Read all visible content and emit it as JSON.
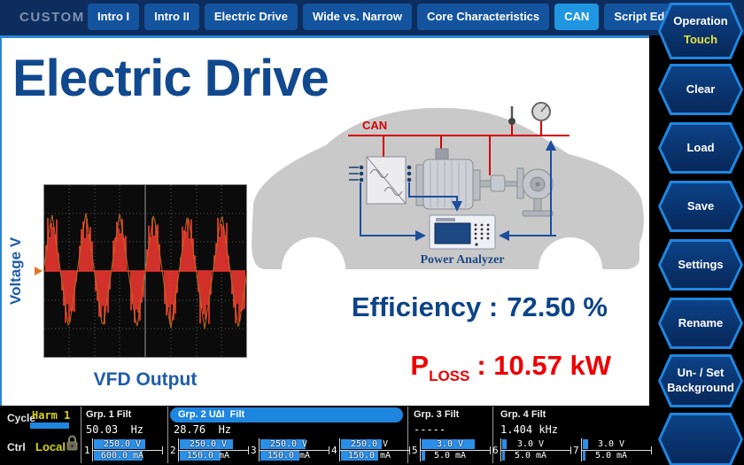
{
  "header": {
    "label": "CUSTOM",
    "tabs": [
      {
        "label": "Intro I",
        "selected": false
      },
      {
        "label": "Intro II",
        "selected": false
      },
      {
        "label": "Electric Drive",
        "selected": false
      },
      {
        "label": "Wide vs. Narrow",
        "selected": false
      },
      {
        "label": "Core Characteristics",
        "selected": false
      },
      {
        "label": "CAN",
        "selected": true
      },
      {
        "label": "Script Editor",
        "selected": false
      }
    ]
  },
  "sidebar": {
    "buttons": [
      {
        "label": "Operation",
        "sublabel": "Touch"
      },
      {
        "label": "Clear"
      },
      {
        "label": "Load"
      },
      {
        "label": "Save"
      },
      {
        "label": "Settings"
      },
      {
        "label": "Rename"
      },
      {
        "label": "Un- / Set",
        "label2": "Background"
      },
      {
        "label": ""
      }
    ]
  },
  "main": {
    "title": "Electric Drive",
    "diagram": {
      "bus_label": "CAN",
      "analyzer_label": "Power Analyzer"
    },
    "scope": {
      "ylabel": "Voltage V",
      "caption": "VFD Output"
    },
    "efficiency": {
      "label": "Efficiency :",
      "value": "72.50 %"
    },
    "ploss": {
      "base": "P",
      "sub": "LOSS",
      "value": ": 10.57 kW"
    }
  },
  "statusbar": {
    "cycle_label": "Cycle",
    "cycle_value": "Harm 1",
    "ctrl_label": "Ctrl",
    "ctrl_value": "Local",
    "groups": [
      {
        "name": "Grp. 1 Filt",
        "freq": "50.03  Hz",
        "selected": false
      },
      {
        "name": "Grp. 2 U∆I  Filt",
        "freq": "28.76  Hz",
        "selected": true
      },
      {
        "name": "Grp. 3 Filt",
        "freq": "-----",
        "selected": false
      },
      {
        "name": "Grp. 4 Filt",
        "freq": "1.404 kHz",
        "selected": false
      }
    ],
    "channels": [
      {
        "num": "1",
        "v": "250.0 V",
        "a": "600.0 mA",
        "vfill": 0.9,
        "afill": 0.86
      },
      {
        "num": "2",
        "v": "250.0 V",
        "a": "150.0 mA",
        "vfill": 0.94,
        "afill": 0.72
      },
      {
        "num": "3",
        "v": "250.0 V",
        "a": "150.0 mA",
        "vfill": 0.8,
        "afill": 0.68
      },
      {
        "num": "4",
        "v": "250.0 V",
        "a": "150.0 mA",
        "vfill": 0.72,
        "afill": 0.66
      },
      {
        "num": "5",
        "v": "3.0 V",
        "a": "5.0 mA",
        "vfill": 0.93,
        "afill": 0.06
      },
      {
        "num": "6",
        "v": "3.0 V",
        "a": "5.0 mA",
        "vfill": 0.08,
        "afill": 0.05
      },
      {
        "num": "7",
        "v": "3.0 V",
        "a": "5.0 mA",
        "vfill": 0.1,
        "afill": 0.05
      }
    ]
  },
  "colors": {
    "accent_blue": "#2196e0",
    "tab_blue": "#14549e",
    "deep_navy": "#0d2d5e",
    "title_blue": "#11498f",
    "alert_red": "#ee0000",
    "bar_blue": "#2b8fe8",
    "value_yellow": "#d8d218",
    "can_red": "#d40000"
  }
}
